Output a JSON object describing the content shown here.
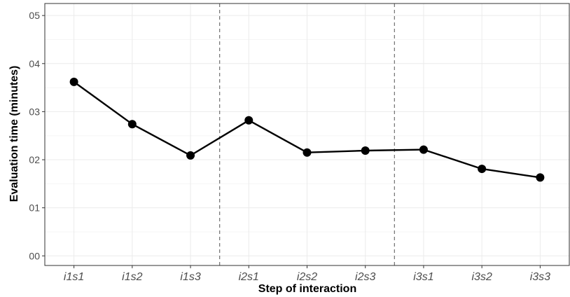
{
  "chart_data": {
    "type": "line",
    "title": "",
    "xlabel": "Step of interaction",
    "ylabel": "Evaluation time (minutes)",
    "categories": [
      "i1s1",
      "i1s2",
      "i1s3",
      "i2s1",
      "i2s2",
      "i2s3",
      "i3s1",
      "i3s2",
      "i3s3"
    ],
    "series": [
      {
        "values": [
          3.62,
          2.74,
          2.09,
          2.82,
          2.15,
          2.19,
          2.21,
          1.81,
          1.63
        ]
      }
    ],
    "ylim": [
      -0.2,
      5.25
    ],
    "yticks": [
      0,
      1,
      2,
      3,
      4,
      5
    ],
    "ytick_labels": [
      "00",
      "01",
      "02",
      "03",
      "04",
      "05"
    ],
    "group_separators_after": [
      3,
      6
    ],
    "grid": true,
    "legend": "none",
    "colors": {
      "line": "#000000",
      "point": "#000000",
      "grid_major": "#ebebeb",
      "grid_minor": "#f5f5f5",
      "separator": "#707070",
      "panel_border": "#333333"
    }
  }
}
